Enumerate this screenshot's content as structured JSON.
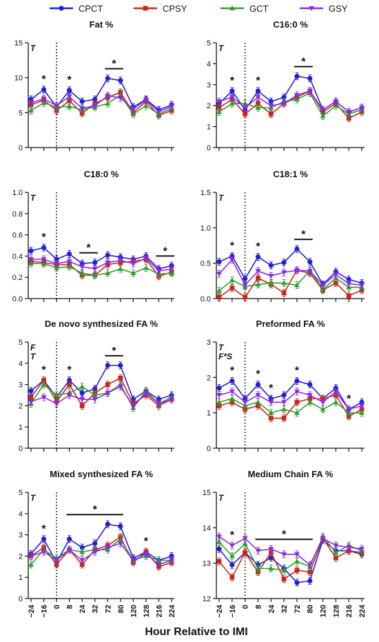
{
  "x_label": "Hour Relative to IMI",
  "x_ticks": [
    "−24",
    "−16",
    "0",
    "8",
    "24",
    "32",
    "72",
    "80",
    "120",
    "128",
    "216",
    "224"
  ],
  "legend": [
    {
      "name": "CPCT",
      "color": "#1f1fd6",
      "marker": "circle"
    },
    {
      "name": "CPSY",
      "color": "#c8261c",
      "marker": "square"
    },
    {
      "name": "GCT",
      "color": "#2e9e2e",
      "marker": "triangle"
    },
    {
      "name": "GSY",
      "color": "#8a2be2",
      "marker": "triangle-down"
    }
  ],
  "chart_data": [
    {
      "type": "line",
      "title": "Fat %",
      "ylim": [
        0,
        15
      ],
      "yticks": [
        0,
        5,
        10,
        15
      ],
      "annotations": [
        "T"
      ],
      "significance": [
        {
          "label": "*",
          "at": [
            1
          ]
        },
        {
          "label": "*",
          "at": [
            3
          ]
        },
        {
          "label": "*",
          "span": [
            6,
            7
          ]
        }
      ],
      "series": [
        {
          "name": "CPCT",
          "values": [
            6.9,
            8.3,
            5.8,
            8.2,
            6.6,
            6.9,
            9.9,
            9.6,
            5.8,
            6.9,
            5.4,
            6.1
          ]
        },
        {
          "name": "CPSY",
          "values": [
            6.1,
            6.8,
            5.3,
            6.7,
            4.9,
            6.3,
            7.2,
            7.9,
            5.0,
            6.6,
            4.6,
            5.3
          ]
        },
        {
          "name": "GCT",
          "values": [
            5.3,
            6.4,
            5.8,
            5.9,
            5.4,
            5.8,
            6.3,
            7.5,
            4.8,
            6.0,
            4.8,
            5.6
          ]
        },
        {
          "name": "GSY",
          "values": [
            6.4,
            7.0,
            6.0,
            7.3,
            5.6,
            6.0,
            7.4,
            7.1,
            5.5,
            6.8,
            5.1,
            5.9
          ]
        }
      ]
    },
    {
      "type": "line",
      "title": "C16:0 %",
      "ylim": [
        0,
        5
      ],
      "yticks": [
        0,
        1,
        2,
        3,
        4,
        5
      ],
      "annotations": [
        "T"
      ],
      "significance": [
        {
          "label": "*",
          "at": [
            1
          ]
        },
        {
          "label": "*",
          "at": [
            3
          ]
        },
        {
          "label": "*",
          "span": [
            6,
            7
          ]
        }
      ],
      "series": [
        {
          "name": "CPCT",
          "values": [
            2.1,
            2.7,
            1.8,
            2.7,
            2.2,
            2.4,
            3.4,
            3.3,
            1.8,
            2.2,
            1.7,
            1.9
          ]
        },
        {
          "name": "CPSY",
          "values": [
            1.9,
            2.3,
            1.6,
            2.1,
            1.6,
            2.1,
            2.4,
            2.7,
            1.7,
            2.1,
            1.4,
            1.7
          ]
        },
        {
          "name": "GCT",
          "values": [
            1.7,
            2.1,
            2.1,
            1.9,
            1.9,
            2.2,
            2.3,
            2.6,
            1.5,
            2.0,
            1.6,
            1.8
          ]
        },
        {
          "name": "GSY",
          "values": [
            2.2,
            2.4,
            1.9,
            2.4,
            2.0,
            2.1,
            2.5,
            2.7,
            1.8,
            2.2,
            1.7,
            1.9
          ]
        }
      ]
    },
    {
      "type": "line",
      "title": "C18:0 %",
      "ylim": [
        0,
        1.0
      ],
      "yticks": [
        0,
        0.2,
        0.4,
        0.6,
        0.8,
        1.0
      ],
      "yticklabels": [
        "0.0",
        "0.2",
        "0.4",
        "0.6",
        "0.8",
        "1.0"
      ],
      "annotations": [
        "T"
      ],
      "significance": [
        {
          "label": "*",
          "at": [
            1
          ]
        },
        {
          "label": "*",
          "span": [
            4,
            5
          ]
        },
        {
          "label": "*",
          "span": [
            10,
            11
          ]
        }
      ],
      "series": [
        {
          "name": "CPCT",
          "values": [
            0.45,
            0.48,
            0.37,
            0.42,
            0.33,
            0.34,
            0.41,
            0.39,
            0.37,
            0.4,
            0.28,
            0.31
          ]
        },
        {
          "name": "CPSY",
          "values": [
            0.35,
            0.34,
            0.32,
            0.32,
            0.22,
            0.22,
            0.32,
            0.34,
            0.35,
            0.37,
            0.21,
            0.25
          ]
        },
        {
          "name": "GCT",
          "values": [
            0.33,
            0.33,
            0.29,
            0.3,
            0.24,
            0.22,
            0.24,
            0.28,
            0.24,
            0.29,
            0.23,
            0.24
          ]
        },
        {
          "name": "GSY",
          "values": [
            0.37,
            0.37,
            0.33,
            0.35,
            0.3,
            0.28,
            0.34,
            0.36,
            0.33,
            0.38,
            0.26,
            0.28
          ]
        }
      ]
    },
    {
      "type": "line",
      "title": "C18:1 %",
      "ylim": [
        0,
        1.5
      ],
      "yticks": [
        0,
        0.5,
        1.0,
        1.5
      ],
      "yticklabels": [
        "0.0",
        "0.5",
        "1.0",
        "1.5"
      ],
      "annotations": [
        "T"
      ],
      "significance": [
        {
          "label": "*",
          "at": [
            1
          ]
        },
        {
          "label": "*",
          "at": [
            3
          ]
        },
        {
          "label": "*",
          "span": [
            6,
            7
          ]
        }
      ],
      "series": [
        {
          "name": "CPCT",
          "values": [
            0.52,
            0.6,
            0.28,
            0.59,
            0.47,
            0.51,
            0.7,
            0.52,
            0.2,
            0.38,
            0.27,
            0.22
          ]
        },
        {
          "name": "CPSY",
          "values": [
            0.02,
            0.15,
            0.02,
            0.29,
            0.2,
            0.08,
            0.4,
            0.36,
            0.12,
            0.22,
            0.04,
            0.12
          ]
        },
        {
          "name": "GCT",
          "values": [
            0.11,
            0.26,
            0.17,
            0.2,
            0.22,
            0.22,
            0.19,
            0.4,
            0.13,
            0.29,
            0.16,
            0.16
          ]
        },
        {
          "name": "GSY",
          "values": [
            0.35,
            0.55,
            0.19,
            0.39,
            0.32,
            0.37,
            0.4,
            0.39,
            0.19,
            0.34,
            0.21,
            0.19
          ]
        }
      ]
    },
    {
      "type": "line",
      "title": "De novo synthesized FA %",
      "ylim": [
        0,
        5
      ],
      "yticks": [
        0,
        1,
        2,
        3,
        4,
        5
      ],
      "annotations": [
        "F",
        "T"
      ],
      "significance": [
        {
          "label": "*",
          "at": [
            1
          ]
        },
        {
          "label": "*",
          "at": [
            3
          ]
        },
        {
          "label": "*",
          "span": [
            6,
            7
          ]
        }
      ],
      "series": [
        {
          "name": "CPCT",
          "values": [
            2.7,
            3.2,
            2.4,
            3.2,
            2.6,
            2.8,
            3.9,
            3.9,
            2.3,
            2.7,
            2.3,
            2.5
          ]
        },
        {
          "name": "CPSY",
          "values": [
            2.4,
            3.2,
            2.2,
            3.0,
            2.0,
            2.6,
            3.0,
            3.3,
            2.1,
            2.5,
            2.0,
            2.3
          ]
        },
        {
          "name": "GCT",
          "values": [
            2.1,
            3.0,
            2.5,
            2.6,
            2.9,
            2.5,
            2.6,
            3.0,
            1.9,
            2.7,
            2.1,
            2.4
          ]
        },
        {
          "name": "GSY",
          "values": [
            2.2,
            2.4,
            2.1,
            2.5,
            2.3,
            2.3,
            2.6,
            2.9,
            2.0,
            2.6,
            2.1,
            2.3
          ]
        }
      ]
    },
    {
      "type": "line",
      "title": "Preformed FA %",
      "ylim": [
        0,
        3
      ],
      "yticks": [
        0,
        1,
        2,
        3
      ],
      "annotations": [
        "T",
        "F*S"
      ],
      "significance": [
        {
          "label": "*",
          "at": [
            1
          ]
        },
        {
          "label": "*",
          "at": [
            3
          ]
        },
        {
          "label": "*",
          "at": [
            4
          ]
        },
        {
          "label": "*",
          "at": [
            6
          ]
        },
        {
          "label": "*",
          "at": [
            10
          ]
        }
      ],
      "series": [
        {
          "name": "CPCT",
          "values": [
            1.7,
            1.9,
            1.4,
            1.8,
            1.4,
            1.5,
            1.9,
            1.8,
            1.4,
            1.7,
            1.1,
            1.3
          ]
        },
        {
          "name": "CPSY",
          "values": [
            1.2,
            1.3,
            1.1,
            1.2,
            0.85,
            0.85,
            1.3,
            1.4,
            1.4,
            1.5,
            0.9,
            1.1
          ]
        },
        {
          "name": "GCT",
          "values": [
            1.3,
            1.4,
            1.2,
            1.3,
            1.0,
            1.1,
            1.0,
            1.3,
            1.1,
            1.3,
            1.0,
            1.0
          ]
        },
        {
          "name": "GSY",
          "values": [
            1.5,
            1.6,
            1.3,
            1.5,
            1.3,
            1.3,
            1.6,
            1.5,
            1.3,
            1.6,
            1.1,
            1.2
          ]
        }
      ]
    },
    {
      "type": "line",
      "title": "Mixed synthesized FA %",
      "ylim": [
        0,
        5
      ],
      "yticks": [
        0,
        1,
        2,
        3,
        4,
        5
      ],
      "annotations": [
        "T"
      ],
      "significance": [
        {
          "label": "*",
          "at": [
            1
          ]
        },
        {
          "label": "*",
          "span": [
            3,
            7
          ]
        },
        {
          "label": "*",
          "at": [
            9
          ]
        }
      ],
      "series": [
        {
          "name": "CPCT",
          "values": [
            2.1,
            2.8,
            1.7,
            2.8,
            2.4,
            2.6,
            3.5,
            3.4,
            1.9,
            2.2,
            1.8,
            2.0
          ]
        },
        {
          "name": "CPSY",
          "values": [
            2.0,
            2.4,
            1.6,
            2.3,
            1.6,
            2.3,
            2.5,
            2.9,
            1.7,
            2.2,
            1.5,
            1.7
          ]
        },
        {
          "name": "GCT",
          "values": [
            1.6,
            2.3,
            1.9,
            2.3,
            2.2,
            2.3,
            2.3,
            2.8,
            1.8,
            2.0,
            1.8,
            1.8
          ]
        },
        {
          "name": "GSY",
          "values": [
            2.0,
            2.2,
            1.8,
            2.3,
            1.8,
            2.2,
            2.4,
            2.6,
            1.8,
            2.1,
            1.6,
            1.8
          ]
        }
      ]
    },
    {
      "type": "line",
      "title": "Medium Chain FA %",
      "ylim": [
        12,
        15
      ],
      "yticks": [
        12,
        13,
        14,
        15
      ],
      "annotations": [
        "T"
      ],
      "significance": [
        {
          "label": "*",
          "at": [
            1
          ]
        },
        {
          "label": "*",
          "span": [
            3,
            7
          ]
        }
      ],
      "series": [
        {
          "name": "CPCT",
          "values": [
            13.4,
            12.95,
            13.3,
            12.95,
            13.15,
            12.85,
            12.45,
            12.5,
            13.65,
            13.35,
            13.35,
            13.25
          ]
        },
        {
          "name": "CPSY",
          "values": [
            13.05,
            12.6,
            13.3,
            12.75,
            13.3,
            12.55,
            12.8,
            12.75,
            13.7,
            13.15,
            13.35,
            13.3
          ]
        },
        {
          "name": "GCT",
          "values": [
            13.6,
            13.2,
            13.55,
            12.85,
            12.85,
            12.8,
            13.05,
            12.9,
            13.75,
            13.3,
            13.5,
            13.35
          ]
        },
        {
          "name": "GSY",
          "values": [
            13.75,
            13.5,
            13.7,
            13.35,
            13.4,
            13.25,
            13.25,
            12.95,
            13.7,
            13.5,
            13.45,
            13.4
          ]
        }
      ]
    }
  ]
}
